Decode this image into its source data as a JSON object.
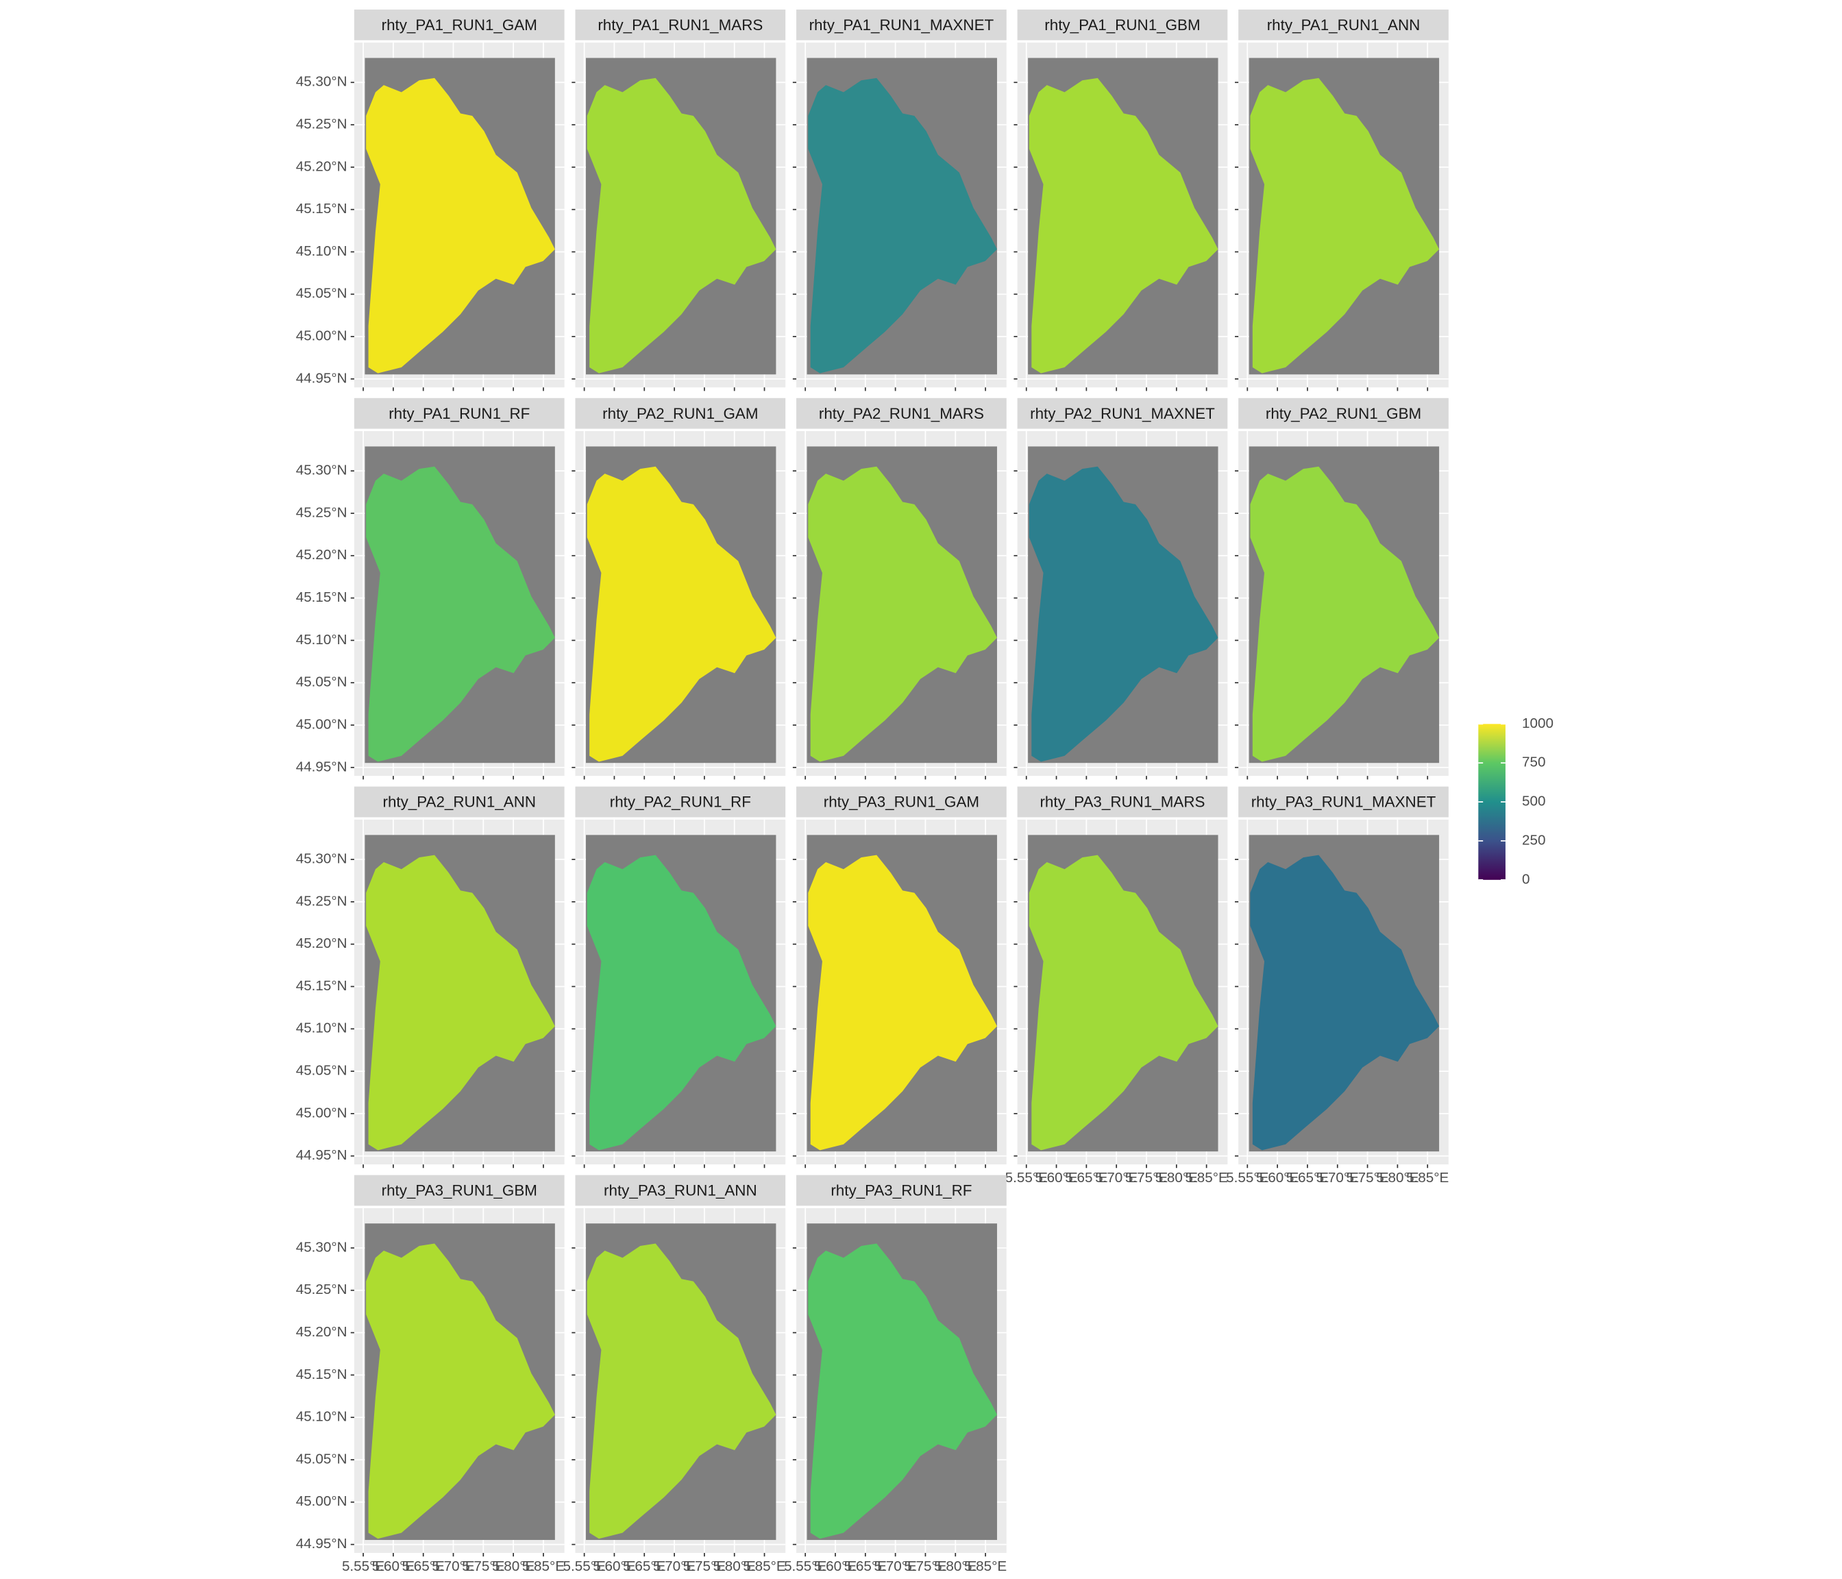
{
  "chart_data": {
    "type": "raster-facets",
    "panels": [
      {
        "title": "rhty_PA1_RUN1_GAM",
        "color": "#f1e51d"
      },
      {
        "title": "rhty_PA1_RUN1_MARS",
        "color": "#a2da37"
      },
      {
        "title": "rhty_PA1_RUN1_MAXNET",
        "color": "#2f8a8c"
      },
      {
        "title": "rhty_PA1_RUN1_GBM",
        "color": "#a5db36"
      },
      {
        "title": "rhty_PA1_RUN1_ANN",
        "color": "#a2da38"
      },
      {
        "title": "rhty_PA1_RUN1_RF",
        "color": "#5cc463"
      },
      {
        "title": "rhty_PA2_RUN1_GAM",
        "color": "#eee51c"
      },
      {
        "title": "rhty_PA2_RUN1_MARS",
        "color": "#9bd93c"
      },
      {
        "title": "rhty_PA2_RUN1_MAXNET",
        "color": "#2c7f8e"
      },
      {
        "title": "rhty_PA2_RUN1_GBM",
        "color": "#95d840"
      },
      {
        "title": "rhty_PA2_RUN1_ANN",
        "color": "#addc30"
      },
      {
        "title": "rhty_PA2_RUN1_RF",
        "color": "#4ec36b"
      },
      {
        "title": "rhty_PA3_RUN1_GAM",
        "color": "#f2e51d"
      },
      {
        "title": "rhty_PA3_RUN1_MARS",
        "color": "#a0da39"
      },
      {
        "title": "rhty_PA3_RUN1_MAXNET",
        "color": "#2c728e"
      },
      {
        "title": "rhty_PA3_RUN1_GBM",
        "color": "#addc30"
      },
      {
        "title": "rhty_PA3_RUN1_ANN",
        "color": "#a8db34"
      },
      {
        "title": "rhty_PA3_RUN1_RF",
        "color": "#55c667"
      }
    ],
    "xlim": [
      5.535,
      5.885
    ],
    "xticks": [
      {
        "value": 5.55,
        "label": "5.55°E"
      },
      {
        "value": 5.6,
        "label": "5.60°E"
      },
      {
        "value": 5.65,
        "label": "5.65°E"
      },
      {
        "value": 5.7,
        "label": "5.70°E"
      },
      {
        "value": 5.75,
        "label": "5.75°E"
      },
      {
        "value": 5.8,
        "label": "5.80°E"
      },
      {
        "value": 5.85,
        "label": "5.85°E"
      }
    ],
    "ylim": [
      44.94,
      45.347
    ],
    "yticks": [
      {
        "value": 44.95,
        "label": "44.95°N"
      },
      {
        "value": 45.0,
        "label": "45.00°N"
      },
      {
        "value": 45.05,
        "label": "45.05°N"
      },
      {
        "value": 45.1,
        "label": "45.10°N"
      },
      {
        "value": 45.15,
        "label": "45.15°N"
      },
      {
        "value": 45.2,
        "label": "45.20°N"
      },
      {
        "value": 45.25,
        "label": "45.25°N"
      },
      {
        "value": 45.3,
        "label": "45.30°N"
      }
    ],
    "grid": true,
    "legend": {
      "limits": [
        0,
        1000
      ],
      "ticks": [
        0,
        250,
        500,
        750,
        1000
      ]
    }
  }
}
